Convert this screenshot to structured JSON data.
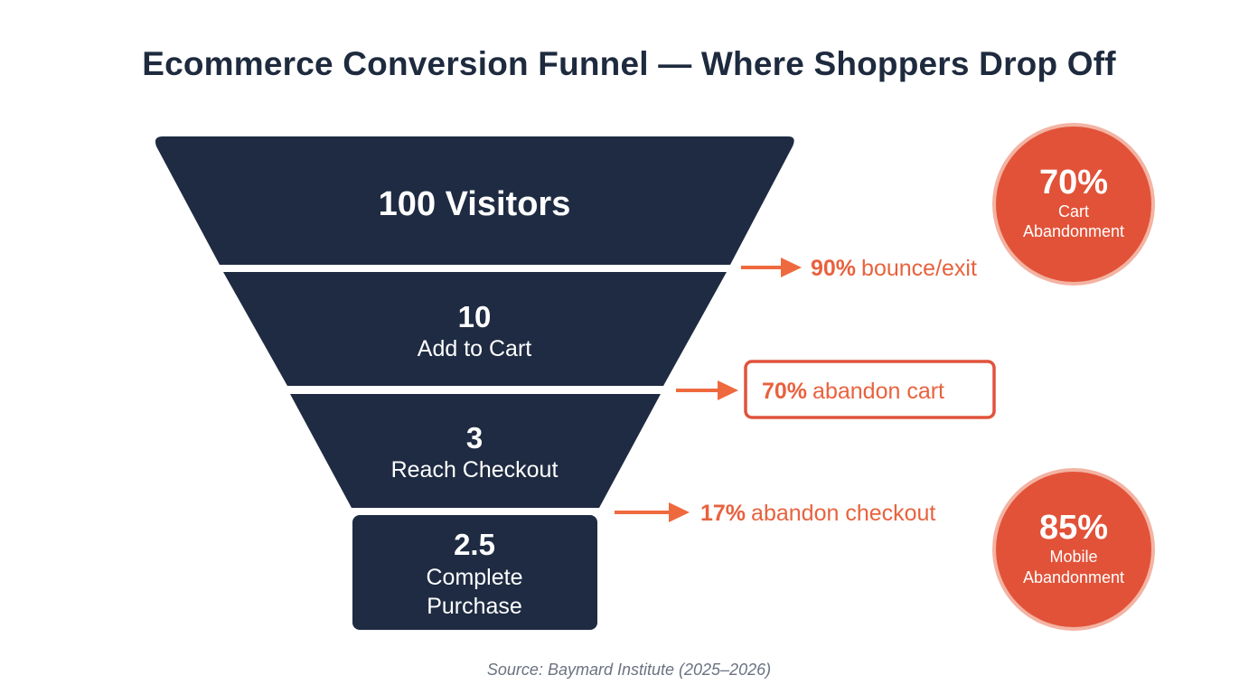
{
  "title": "Ecommerce Conversion Funnel — Where Shoppers Drop Off",
  "stages": [
    {
      "value": "100 Visitors",
      "label": ""
    },
    {
      "value": "10",
      "label": "Add to Cart"
    },
    {
      "value": "3",
      "label": "Reach Checkout"
    },
    {
      "value": "2.5",
      "label": "Complete",
      "label2": "Purchase"
    }
  ],
  "dropoffs": [
    {
      "pct": "90%",
      "text": "bounce/exit"
    },
    {
      "pct": "70%",
      "text": "abandon cart"
    },
    {
      "pct": "17%",
      "text": "abandon checkout"
    }
  ],
  "badges": [
    {
      "value": "70%",
      "line1": "Cart",
      "line2": "Abandonment"
    },
    {
      "value": "85%",
      "line1": "Mobile",
      "line2": "Abandonment"
    }
  ],
  "colors": {
    "funnel": "#1e2b42",
    "accent": "#e8623e",
    "badge": "#e25238"
  },
  "source": "Source: Baymard Institute (2025–2026)"
}
